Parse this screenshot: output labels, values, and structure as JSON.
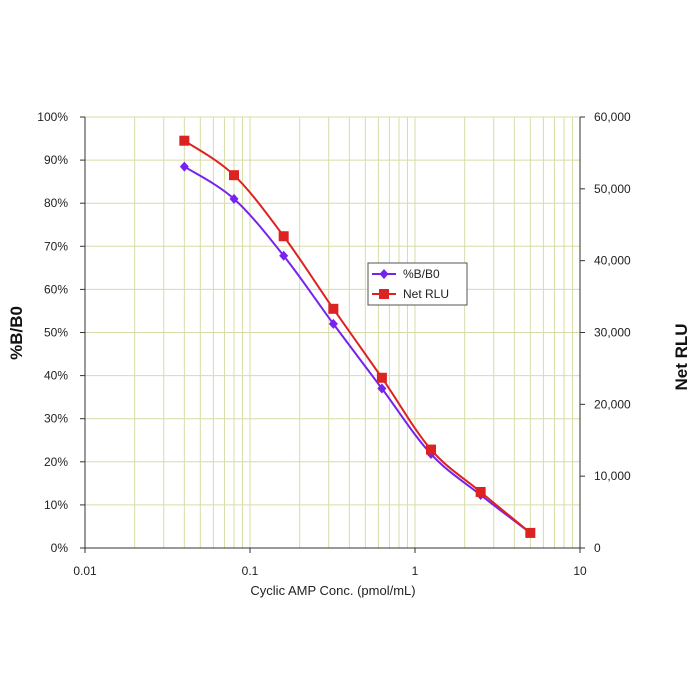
{
  "chart_data": {
    "type": "line",
    "title": "",
    "x_scale": "log",
    "xlabel": "Cyclic AMP Conc. (pmol/mL)",
    "ylabel_left": "%B/B0",
    "ylabel_right": "Net RLU",
    "xlim": [
      0.01,
      10
    ],
    "ylim_left": [
      0,
      100
    ],
    "ylim_right": [
      0,
      60000
    ],
    "x_tick_labels": [
      "0.01",
      "0.1",
      "1",
      "10"
    ],
    "y_left_tick_labels": [
      "0%",
      "10%",
      "20%",
      "30%",
      "40%",
      "50%",
      "60%",
      "70%",
      "80%",
      "90%",
      "100%"
    ],
    "y_right_tick_labels": [
      "0",
      "10,000",
      "20,000",
      "30,000",
      "40,000",
      "50,000",
      "60,000"
    ],
    "grid": true,
    "legend_position": "center-right",
    "x": [
      0.04,
      0.08,
      0.16,
      0.32,
      0.63,
      1.25,
      2.5,
      5.0
    ],
    "series": [
      {
        "name": "%B/B0",
        "axis": "left",
        "marker": "diamond",
        "color": "#7722ee",
        "values": [
          88.5,
          81,
          67.8,
          52,
          37,
          21.8,
          12.3,
          3.5
        ]
      },
      {
        "name": "Net RLU",
        "axis": "right",
        "marker": "square",
        "color": "#dd2222",
        "values": [
          56700,
          51900,
          43400,
          33300,
          23700,
          13700,
          7800,
          2100
        ]
      }
    ]
  },
  "colors": {
    "grid": "#d8dca8",
    "axis": "#333333",
    "background": "#ffffff"
  }
}
